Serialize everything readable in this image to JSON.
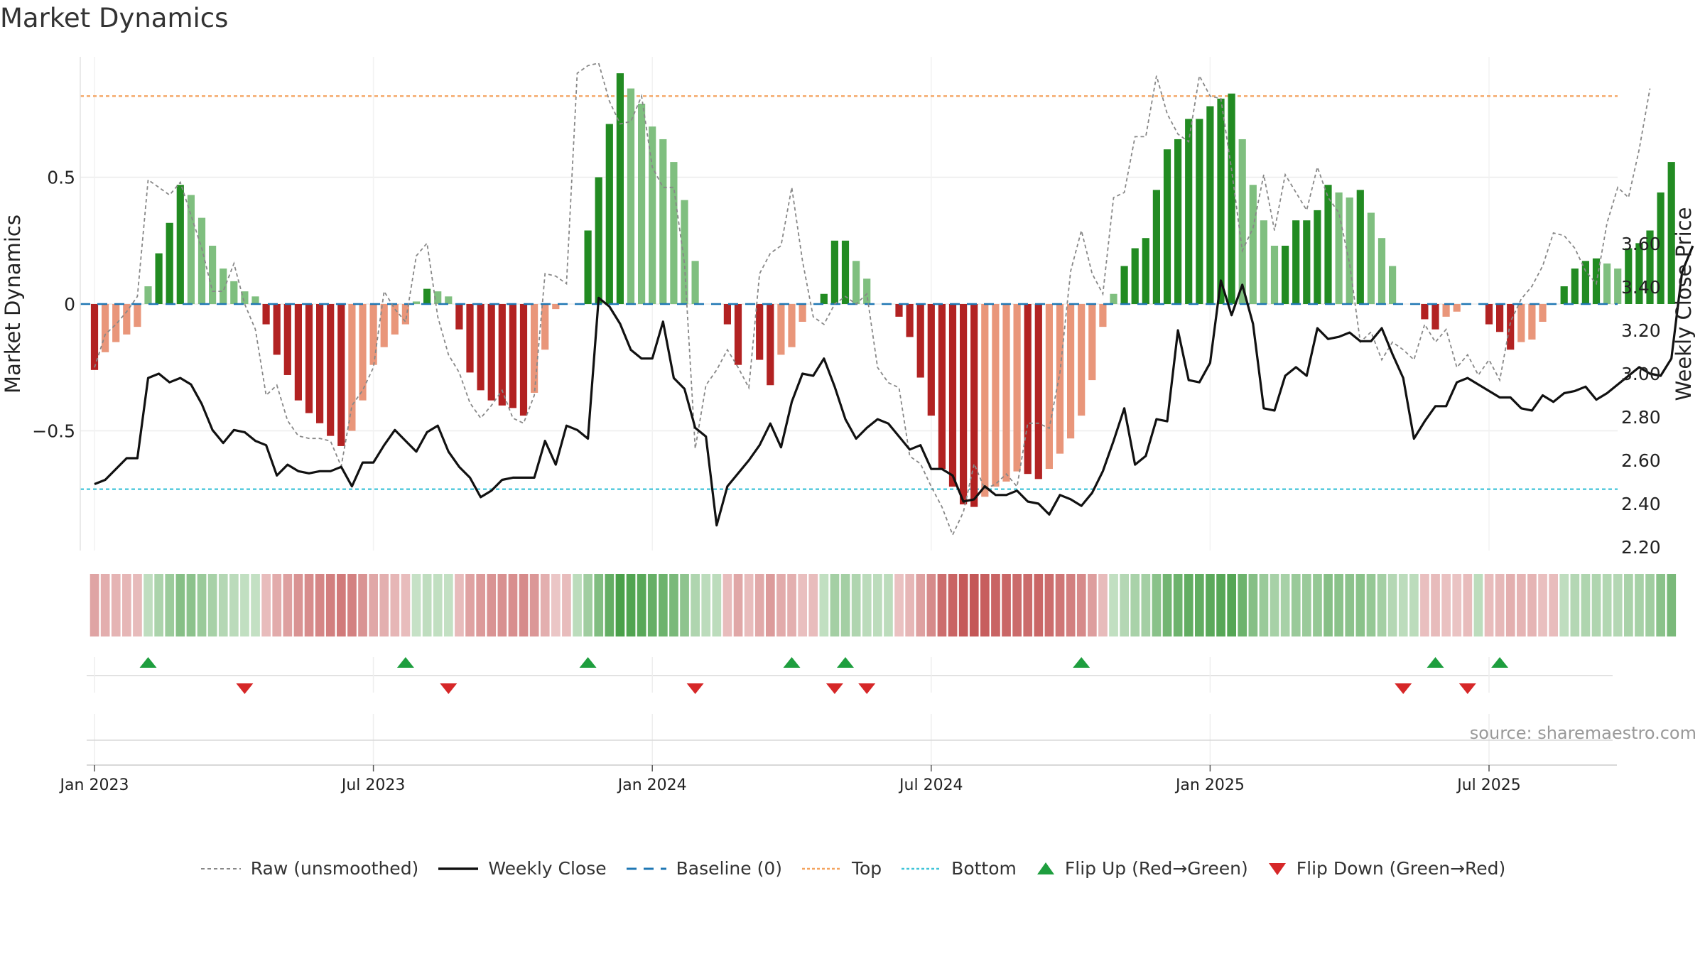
{
  "title": "Market Dynamics",
  "source": "source: sharemaestro.com",
  "colors": {
    "strong_green": "#228B22",
    "light_green": "#7FBF7F",
    "strong_red": "#B22222",
    "light_red": "#E9967A",
    "raw_line": "#888888",
    "close_line": "#111111",
    "baseline": "#1f77b4",
    "top_line": "#f4a460",
    "bottom_line": "#40c4d8",
    "flip_up": "#1e9e3e",
    "flip_down": "#d62728"
  },
  "legend": {
    "raw": "Raw (unsmoothed)",
    "close": "Weekly Close",
    "baseline": "Baseline (0)",
    "top": "Top",
    "bottom": "Bottom",
    "flip_up": "Flip Up (Red→Green)",
    "flip_down": "Flip Down (Green→Red)"
  },
  "chart_data": {
    "type": "bar",
    "title": "Market Dynamics",
    "ylabel_left": "Market Dynamics",
    "ylabel_right": "Weekly Close Price",
    "ylim_left": [
      -0.97,
      0.97
    ],
    "ylim_right": [
      2.2,
      3.65
    ],
    "yticks_left": [
      0.5,
      0,
      -0.5
    ],
    "yticks_left_labels": [
      "0.5",
      "0",
      "−0.5"
    ],
    "yticks_right": [
      3.6,
      3.4,
      3.2,
      3.0,
      2.8,
      2.6,
      2.4,
      2.2
    ],
    "yticks_right_labels": [
      "3.60",
      "3.40",
      "3.20",
      "3.00",
      "2.80",
      "2.60",
      "2.40",
      "2.20"
    ],
    "x_ticks": [
      "Jan 2023",
      "Jul 2023",
      "Jan 2024",
      "Jul 2024",
      "Jan 2025",
      "Jul 2025"
    ],
    "x_tick_week_index": [
      0,
      26,
      52,
      78,
      104,
      130
    ],
    "x_start_week_index": -1,
    "top_level": 0.82,
    "bottom_level": -0.73,
    "baseline": 0,
    "grid": true,
    "legend_position": "bottom-center",
    "series": [
      {
        "name": "Market Dynamics",
        "kind": "bar",
        "values": [
          -0.26,
          -0.19,
          -0.15,
          -0.12,
          -0.09,
          0.07,
          0.2,
          0.32,
          0.47,
          0.43,
          0.34,
          0.23,
          0.14,
          0.09,
          0.05,
          0.03,
          -0.08,
          -0.2,
          -0.28,
          -0.38,
          -0.43,
          -0.47,
          -0.52,
          -0.56,
          -0.5,
          -0.38,
          -0.24,
          -0.17,
          -0.12,
          -0.08,
          0.01,
          0.06,
          0.05,
          0.03,
          -0.1,
          -0.27,
          -0.34,
          -0.38,
          -0.4,
          -0.41,
          -0.44,
          -0.35,
          -0.18,
          -0.02,
          0.0,
          0.0,
          0.29,
          0.5,
          0.71,
          0.91,
          0.85,
          0.79,
          0.7,
          0.65,
          0.56,
          0.41,
          0.17,
          0.0,
          0.0,
          -0.08,
          -0.24,
          0.0,
          -0.22,
          -0.32,
          -0.2,
          -0.17,
          -0.07,
          0.0,
          0.04,
          0.25,
          0.25,
          0.17,
          0.1,
          0.0,
          0.0,
          -0.05,
          -0.13,
          -0.29,
          -0.44,
          -0.65,
          -0.72,
          -0.79,
          -0.8,
          -0.76,
          -0.72,
          -0.7,
          -0.66,
          -0.67,
          -0.69,
          -0.65,
          -0.59,
          -0.53,
          -0.44,
          -0.3,
          -0.09,
          0.04,
          0.15,
          0.22,
          0.26,
          0.45,
          0.61,
          0.65,
          0.73,
          0.73,
          0.78,
          0.81,
          0.83,
          0.65,
          0.47,
          0.33,
          0.23,
          0.23,
          0.33,
          0.33,
          0.37,
          0.47,
          0.44,
          0.42,
          0.45,
          0.36,
          0.26,
          0.15,
          0.0,
          0.0,
          -0.06,
          -0.1,
          -0.05,
          -0.03,
          0.0,
          0.0,
          -0.08,
          -0.11,
          -0.18,
          -0.15,
          -0.14,
          -0.07,
          0.0,
          0.07,
          0.14,
          0.17,
          0.18,
          0.16,
          0.14,
          0.22,
          0.24,
          0.29,
          0.44,
          0.56
        ]
      },
      {
        "name": "Raw (unsmoothed)",
        "kind": "line",
        "values": [
          -0.25,
          -0.12,
          -0.08,
          -0.03,
          0.03,
          0.49,
          0.46,
          0.43,
          0.48,
          0.35,
          0.22,
          0.05,
          0.05,
          0.16,
          0.0,
          -0.1,
          -0.36,
          -0.32,
          -0.46,
          -0.52,
          -0.53,
          -0.53,
          -0.54,
          -0.64,
          -0.4,
          -0.34,
          -0.25,
          0.05,
          -0.02,
          -0.07,
          0.19,
          0.24,
          -0.05,
          -0.2,
          -0.27,
          -0.39,
          -0.45,
          -0.4,
          -0.34,
          -0.45,
          -0.47,
          -0.36,
          0.12,
          0.11,
          0.08,
          0.91,
          0.94,
          0.95,
          0.8,
          0.71,
          0.72,
          0.82,
          0.54,
          0.46,
          0.46,
          0.16,
          -0.57,
          -0.32,
          -0.26,
          -0.18,
          -0.25,
          -0.33,
          0.12,
          0.2,
          0.23,
          0.46,
          0.17,
          -0.05,
          -0.08,
          0.0,
          0.03,
          0.0,
          0.04,
          -0.25,
          -0.31,
          -0.33,
          -0.6,
          -0.63,
          -0.72,
          -0.8,
          -0.91,
          -0.82,
          -0.63,
          -0.73,
          -0.71,
          -0.67,
          -0.72,
          -0.47,
          -0.47,
          -0.49,
          -0.27,
          0.13,
          0.29,
          0.12,
          0.04,
          0.42,
          0.44,
          0.66,
          0.66,
          0.9,
          0.75,
          0.67,
          0.64,
          0.9,
          0.82,
          0.81,
          0.53,
          0.21,
          0.3,
          0.51,
          0.29,
          0.51,
          0.44,
          0.37,
          0.54,
          0.42,
          0.36,
          0.16,
          -0.15,
          -0.11,
          -0.22,
          -0.15,
          -0.18,
          -0.22,
          -0.08,
          -0.15,
          -0.1,
          -0.25,
          -0.2,
          -0.28,
          -0.22,
          -0.3,
          -0.07,
          0.02,
          0.07,
          0.15,
          0.28,
          0.27,
          0.22,
          0.13,
          0.08,
          0.32,
          0.46,
          0.42,
          0.61,
          0.85
        ]
      },
      {
        "name": "Weekly Close",
        "kind": "line",
        "axis": "right",
        "values": [
          2.49,
          2.51,
          2.56,
          2.61,
          2.61,
          2.98,
          3.0,
          2.96,
          2.98,
          2.95,
          2.86,
          2.74,
          2.68,
          2.74,
          2.73,
          2.69,
          2.67,
          2.53,
          2.58,
          2.55,
          2.54,
          2.55,
          2.55,
          2.57,
          2.48,
          2.59,
          2.59,
          2.67,
          2.74,
          2.69,
          2.64,
          2.73,
          2.76,
          2.64,
          2.57,
          2.52,
          2.43,
          2.46,
          2.51,
          2.52,
          2.52,
          2.52,
          2.69,
          2.58,
          2.76,
          2.74,
          2.7,
          3.35,
          3.31,
          3.23,
          3.11,
          3.07,
          3.07,
          3.24,
          2.98,
          2.93,
          2.75,
          2.71,
          2.3,
          2.48,
          2.54,
          2.6,
          2.67,
          2.77,
          2.66,
          2.87,
          3.0,
          2.99,
          3.07,
          2.94,
          2.79,
          2.7,
          2.75,
          2.79,
          2.77,
          2.71,
          2.65,
          2.67,
          2.56,
          2.56,
          2.53,
          2.41,
          2.42,
          2.48,
          2.44,
          2.44,
          2.46,
          2.41,
          2.4,
          2.35,
          2.44,
          2.42,
          2.39,
          2.45,
          2.55,
          2.69,
          2.84,
          2.58,
          2.62,
          2.79,
          2.78,
          3.2,
          2.97,
          2.96,
          3.05,
          3.43,
          3.27,
          3.41,
          3.23,
          2.84,
          2.83,
          2.99,
          3.03,
          2.99,
          3.21,
          3.16,
          3.17,
          3.19,
          3.15,
          3.15,
          3.21,
          3.09,
          2.98,
          2.7,
          2.78,
          2.85,
          2.85,
          2.96,
          2.98,
          2.95,
          2.92,
          2.89,
          2.89,
          2.84,
          2.83,
          2.9,
          2.87,
          2.91,
          2.92,
          2.94,
          2.88,
          2.91,
          2.95,
          2.99,
          3.03,
          3.0,
          2.99,
          3.07,
          3.47,
          3.59
        ]
      }
    ],
    "flips_up_week_index": [
      5,
      29,
      46,
      65,
      70,
      92,
      125,
      131
    ],
    "flips_down_week_index": [
      14,
      33,
      56,
      69,
      72,
      122,
      128
    ]
  }
}
